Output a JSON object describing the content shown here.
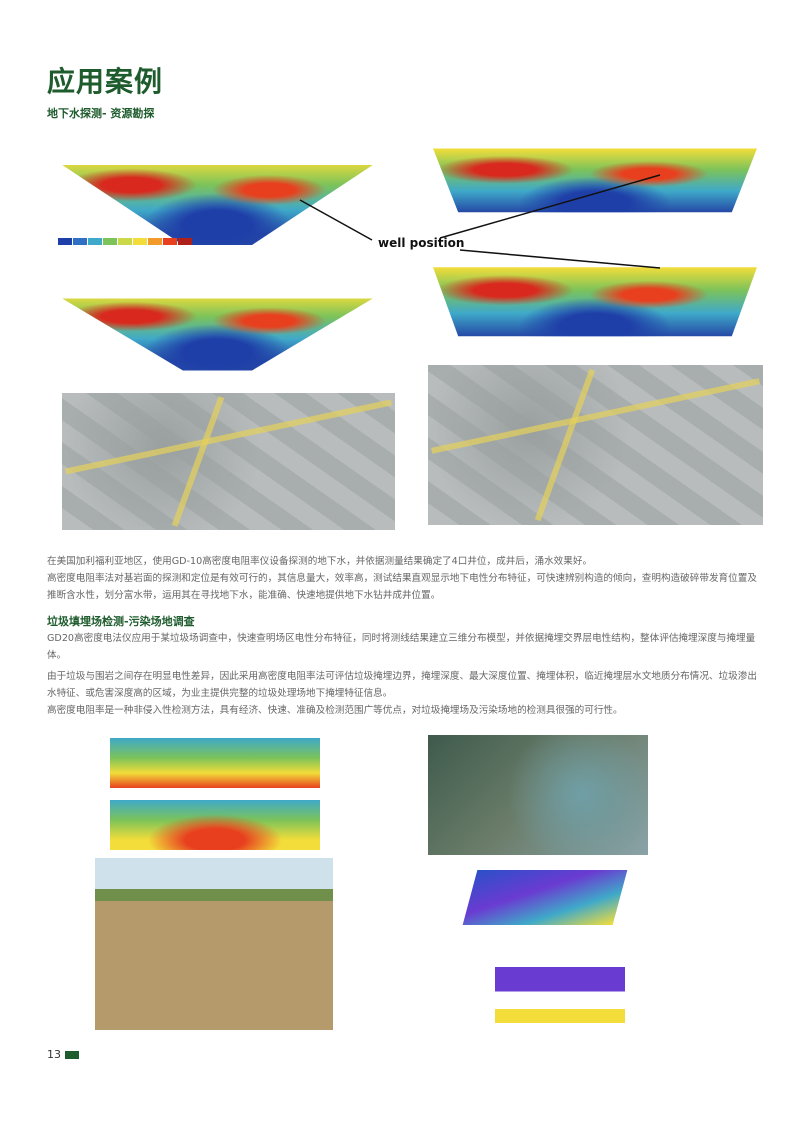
{
  "title": "应用案例",
  "section1": {
    "heading": "地下水探测- 资源勘探",
    "annotation": "well position",
    "paragraphs": [
      "在美国加利福利亚地区，使用GD-10高密度电阻率仪设备探测的地下水，并依据测量结果确定了4口井位，成井后，涌水效果好。",
      "高密度电阻率法对基岩面的探测和定位是有效可行的，其信息量大，效率高，测试结果直观显示地下电性分布特征，可快速辨别构造的倾向，查明构造破碎带发育位置及推断含水性，划分富水带，运用其在寻找地下水，能准确、快速地提供地下水钻井成井位置。"
    ]
  },
  "section2": {
    "heading": "垃圾填埋场检测-污染场地调查",
    "paragraphs": [
      "GD20高密度电法仪应用于某垃圾场调查中，快速查明场区电性分布特征，同时将测线结果建立三维分布模型，并依据掩埋交界层电性结构，整体评估掩埋深度与掩埋量体。",
      "由于垃圾与围岩之间存在明显电性差异，因此采用高密度电阻率法可评估垃圾掩埋边界，掩埋深度、最大深度位置、掩埋体积，临近掩埋层水文地质分布情况、垃圾渗出水特征、或危害深度高的区域，为业主提供完整的垃圾处理场地下掩埋特征信息。",
      "高密度电阻率是一种非侵入性检测方法，具有经济、快速、准确及检测范围广等优点，对垃圾掩埋场及污染场地的检测具很强的可行性。"
    ]
  },
  "page_number": "13",
  "colors": {
    "brand": "#1e5c2d"
  }
}
